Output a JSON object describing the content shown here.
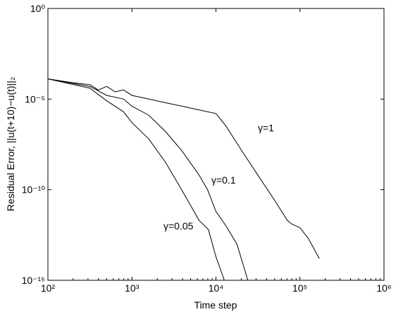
{
  "chart_data": {
    "type": "line",
    "xlabel": "Time step",
    "ylabel": "Residual Error, ||u(t+10)−u(t)||₂",
    "xscale": "log",
    "yscale": "log",
    "xlim": [
      100,
      1000000
    ],
    "ylim": [
      1e-15,
      1
    ],
    "xticks": [
      {
        "value": 100,
        "label": "10²"
      },
      {
        "value": 1000,
        "label": "10³"
      },
      {
        "value": 10000,
        "label": "10⁴"
      },
      {
        "value": 100000,
        "label": "10⁵"
      },
      {
        "value": 1000000,
        "label": "10⁶"
      }
    ],
    "yticks": [
      {
        "value": 1e-15,
        "label": "10⁻¹⁵"
      },
      {
        "value": 1e-10,
        "label": "10⁻¹⁰"
      },
      {
        "value": 1e-05,
        "label": "10⁻⁵"
      },
      {
        "value": 1,
        "label": "10⁰"
      }
    ],
    "series": [
      {
        "name": "γ=1",
        "color": "#000000",
        "x": [
          100,
          200,
          316,
          398,
          501,
          631,
          794,
          1000,
          1585,
          2512,
          3981,
          6310,
          10000,
          13183,
          19953,
          31623,
          50119,
          70795,
          79433,
          100000,
          125893,
          169824
        ],
        "values": [
          0.00013,
          8e-05,
          6.3e-05,
          3.2e-05,
          5e-05,
          2.5e-05,
          3.2e-05,
          1.6e-05,
          1e-05,
          6.3e-06,
          4e-06,
          2.5e-06,
          1.6e-06,
          3.2e-07,
          1.6e-08,
          6.3e-10,
          2.5e-11,
          2e-12,
          1.3e-12,
          7.9e-13,
          2e-13,
          1.6e-14
        ]
      },
      {
        "name": "γ=0.1",
        "color": "#000000",
        "x": [
          100,
          316,
          501,
          794,
          1000,
          1585,
          2512,
          3981,
          6310,
          7943,
          10000,
          13183,
          17783,
          23988
        ],
        "values": [
          0.00013,
          5e-05,
          1.6e-05,
          1e-05,
          4e-06,
          1.3e-06,
          1.6e-07,
          1.3e-08,
          6.3e-10,
          1e-10,
          6.3e-12,
          1e-12,
          1e-13,
          1e-15
        ]
      },
      {
        "name": "γ=0.05",
        "color": "#000000",
        "x": [
          100,
          316,
          501,
          794,
          1000,
          1585,
          2512,
          3981,
          6310,
          8128,
          10000,
          12589
        ],
        "values": [
          0.00013,
          4e-05,
          8e-06,
          2e-06,
          5e-07,
          6.3e-08,
          3.2e-09,
          8.5e-11,
          2e-12,
          6.3e-13,
          2e-14,
          1e-15
        ]
      }
    ],
    "annotations": [
      {
        "text": "γ=1"
      },
      {
        "text": "γ=0.1"
      },
      {
        "text": "γ=0.05"
      }
    ]
  }
}
